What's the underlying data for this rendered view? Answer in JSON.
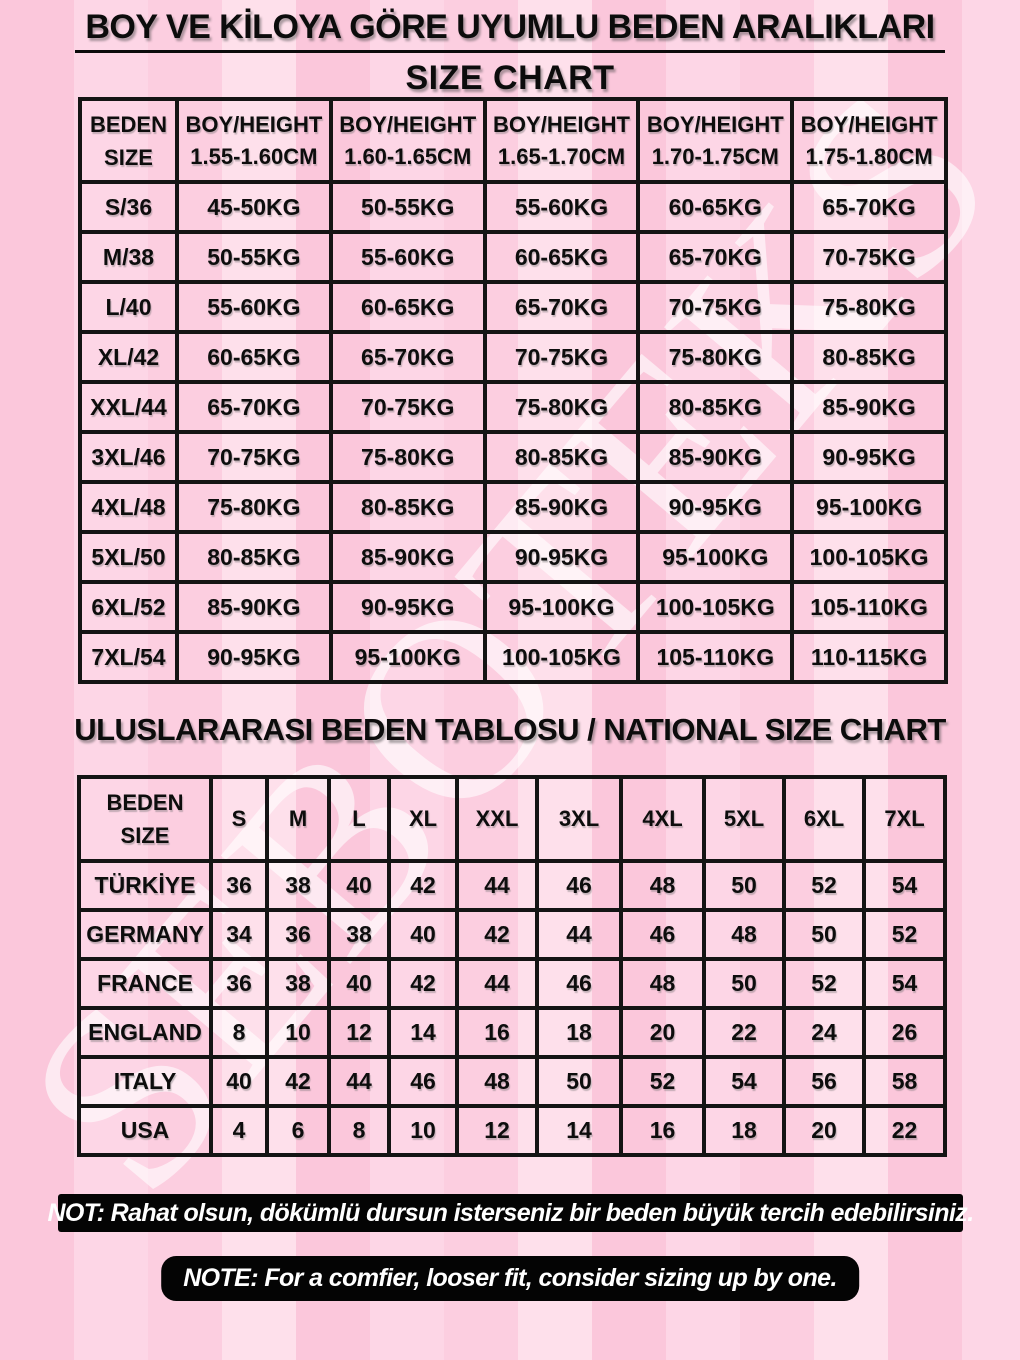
{
  "page": {
    "title_line1": "BOY VE KİLOYA GÖRE UYUMLU BEDEN ARALIKLARI",
    "title_line2": "SIZE CHART",
    "watermark": "SEBOTEKS",
    "colors": {
      "background_pink": "#fdd4e4",
      "stripe_dark": "#fbc7db",
      "stripe_light": "#fee0eb",
      "table_border": "#141414",
      "text": "#0d0d0d",
      "note_background": "#000000",
      "note_text": "#ffffff",
      "watermark_white": "#ffffff"
    }
  },
  "size_weight_table": {
    "corner_header": {
      "line1": "BEDEN",
      "line2": "SIZE"
    },
    "columns": [
      {
        "label": "BOY/HEIGHT",
        "range": "1.55-1.60CM"
      },
      {
        "label": "BOY/HEIGHT",
        "range": "1.60-1.65CM"
      },
      {
        "label": "BOY/HEIGHT",
        "range": "1.65-1.70CM"
      },
      {
        "label": "BOY/HEIGHT",
        "range": "1.70-1.75CM"
      },
      {
        "label": "BOY/HEIGHT",
        "range": "1.75-1.80CM"
      }
    ],
    "rows": [
      {
        "size": "S/36",
        "weights": [
          "45-50KG",
          "50-55KG",
          "55-60KG",
          "60-65KG",
          "65-70KG"
        ]
      },
      {
        "size": "M/38",
        "weights": [
          "50-55KG",
          "55-60KG",
          "60-65KG",
          "65-70KG",
          "70-75KG"
        ]
      },
      {
        "size": "L/40",
        "weights": [
          "55-60KG",
          "60-65KG",
          "65-70KG",
          "70-75KG",
          "75-80KG"
        ]
      },
      {
        "size": "XL/42",
        "weights": [
          "60-65KG",
          "65-70KG",
          "70-75KG",
          "75-80KG",
          "80-85KG"
        ]
      },
      {
        "size": "XXL/44",
        "weights": [
          "65-70KG",
          "70-75KG",
          "75-80KG",
          "80-85KG",
          "85-90KG"
        ]
      },
      {
        "size": "3XL/46",
        "weights": [
          "70-75KG",
          "75-80KG",
          "80-85KG",
          "85-90KG",
          "90-95KG"
        ]
      },
      {
        "size": "4XL/48",
        "weights": [
          "75-80KG",
          "80-85KG",
          "85-90KG",
          "90-95KG",
          "95-100KG"
        ]
      },
      {
        "size": "5XL/50",
        "weights": [
          "80-85KG",
          "85-90KG",
          "90-95KG",
          "95-100KG",
          "100-105KG"
        ]
      },
      {
        "size": "6XL/52",
        "weights": [
          "85-90KG",
          "90-95KG",
          "95-100KG",
          "100-105KG",
          "105-110KG"
        ]
      },
      {
        "size": "7XL/54",
        "weights": [
          "90-95KG",
          "95-100KG",
          "100-105KG",
          "105-110KG",
          "110-115KG"
        ]
      }
    ]
  },
  "international": {
    "title": "ULUSLARARASI BEDEN TABLOSU / NATIONAL SIZE CHART",
    "corner_header": {
      "line1": "BEDEN",
      "line2": "SIZE"
    },
    "sizes": [
      "S",
      "M",
      "L",
      "XL",
      "XXL",
      "3XL",
      "4XL",
      "5XL",
      "6XL",
      "7XL"
    ],
    "rows": [
      {
        "country": "TÜRKİYE",
        "values": [
          "36",
          "38",
          "40",
          "42",
          "44",
          "46",
          "48",
          "50",
          "52",
          "54"
        ]
      },
      {
        "country": "GERMANY",
        "values": [
          "34",
          "36",
          "38",
          "40",
          "42",
          "44",
          "46",
          "48",
          "50",
          "52"
        ]
      },
      {
        "country": "FRANCE",
        "values": [
          "36",
          "38",
          "40",
          "42",
          "44",
          "46",
          "48",
          "50",
          "52",
          "54"
        ]
      },
      {
        "country": "ENGLAND",
        "values": [
          "8",
          "10",
          "12",
          "14",
          "16",
          "18",
          "20",
          "22",
          "24",
          "26"
        ]
      },
      {
        "country": "ITALY",
        "values": [
          "40",
          "42",
          "44",
          "46",
          "48",
          "50",
          "52",
          "54",
          "56",
          "58"
        ]
      },
      {
        "country": "USA",
        "values": [
          "4",
          "6",
          "8",
          "10",
          "12",
          "14",
          "16",
          "18",
          "20",
          "22"
        ]
      }
    ]
  },
  "notes": {
    "turkish": "NOT: Rahat olsun, dökümlü dursun isterseniz bir beden büyük tercih edebilirsiniz.",
    "english": "NOTE: For a comfier, looser fit, consider sizing up by one."
  }
}
